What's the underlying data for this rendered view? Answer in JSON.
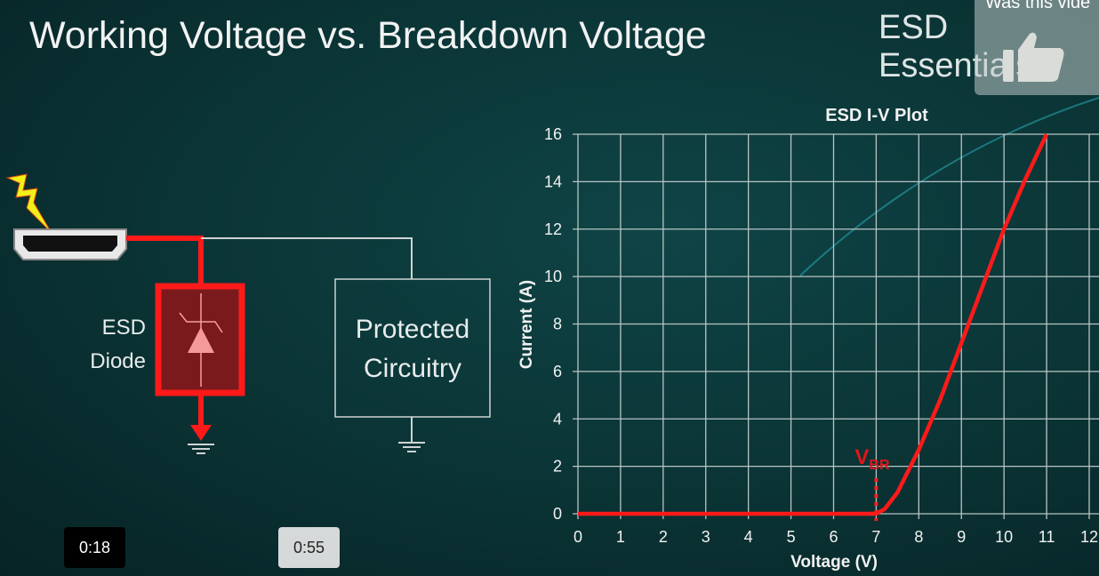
{
  "slide": {
    "title": "Working Voltage vs. Breakdown Voltage",
    "brand": "ESD Essentials"
  },
  "feedback": {
    "question": "Was this vide",
    "icon": "thumbs-up-icon"
  },
  "diagram": {
    "diode_label_line1": "ESD",
    "diode_label_line2": "Diode",
    "protected_line1": "Protected",
    "protected_line2": "Circuitry",
    "connector_icon": "hdmi-connector-icon",
    "strike_icon": "lightning-icon",
    "accent_color": "#ff1a1a"
  },
  "player": {
    "time_left": "0:18",
    "time_right": "0:55"
  },
  "chart_data": {
    "type": "line",
    "title": "ESD I-V Plot",
    "xlabel": "Voltage (V)",
    "ylabel": "Current (A)",
    "xlim": [
      0,
      12
    ],
    "ylim": [
      0,
      16
    ],
    "xticks": [
      "0",
      "1",
      "2",
      "3",
      "4",
      "5",
      "6",
      "7",
      "8",
      "9",
      "10",
      "11",
      "12"
    ],
    "yticks": [
      "0",
      "2",
      "4",
      "6",
      "8",
      "10",
      "12",
      "14",
      "16"
    ],
    "grid": true,
    "series": [
      {
        "color": "#ff1a1a",
        "x": [
          0,
          7,
          7.2,
          7.5,
          8,
          8.5,
          9,
          9.5,
          10,
          10.5,
          11
        ],
        "y": [
          0,
          0,
          0.2,
          0.9,
          2.7,
          4.8,
          7.2,
          9.6,
          12,
          14.1,
          16
        ]
      }
    ],
    "annotation": {
      "main": "V",
      "sub": "BR",
      "x": 7
    }
  }
}
